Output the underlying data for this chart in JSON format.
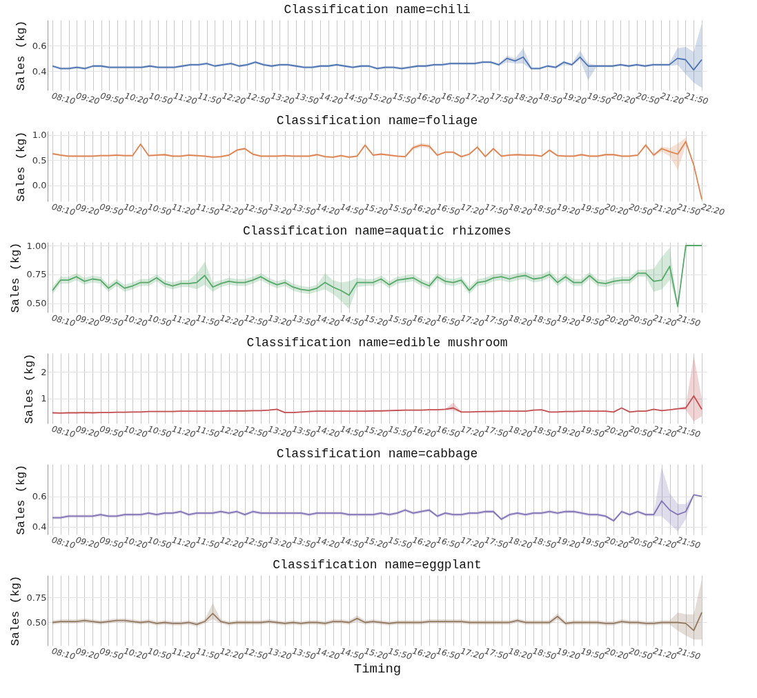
{
  "chart_data": [
    {
      "type": "line",
      "title": "Classification name=chili",
      "ylabel": "Sales (kg)",
      "grid": true,
      "tick_labels": "y",
      "ylim": [
        0.25,
        0.8
      ],
      "yticks": [
        0.4,
        0.6
      ],
      "categories": [
        "08:10",
        null,
        null,
        "09:20",
        null,
        null,
        "09:50",
        null,
        null,
        "10:20",
        null,
        null,
        "10:50",
        null,
        null,
        "11:20",
        null,
        null,
        "11:50",
        null,
        null,
        "12:20",
        null,
        null,
        "12:50",
        null,
        null,
        "13:20",
        null,
        null,
        "13:50",
        null,
        null,
        "14:20",
        null,
        null,
        "14:50",
        null,
        null,
        "15:20",
        null,
        null,
        "15:50",
        null,
        null,
        "16:20",
        null,
        null,
        "16:50",
        null,
        null,
        "17:20",
        null,
        null,
        "17:50",
        null,
        null,
        "18:20",
        null,
        null,
        "18:50",
        null,
        null,
        "19:20",
        null,
        null,
        "19:50",
        null,
        null,
        "20:20",
        null,
        null,
        "20:50",
        null,
        null,
        "21:20",
        null,
        null,
        "21:50",
        null,
        null
      ],
      "series": [
        {
          "color": "#4c72b0",
          "values": [
            0.44,
            0.42,
            0.42,
            0.43,
            0.42,
            0.44,
            0.44,
            0.43,
            0.43,
            0.43,
            0.43,
            0.43,
            0.44,
            0.43,
            0.43,
            0.43,
            0.44,
            0.45,
            0.45,
            0.46,
            0.44,
            0.45,
            0.46,
            0.44,
            0.45,
            0.47,
            0.45,
            0.44,
            0.45,
            0.45,
            0.44,
            0.43,
            0.43,
            0.44,
            0.44,
            0.45,
            0.44,
            0.43,
            0.44,
            0.44,
            0.42,
            0.43,
            0.43,
            0.42,
            0.43,
            0.44,
            0.44,
            0.45,
            0.45,
            0.46,
            0.46,
            0.46,
            0.46,
            0.47,
            0.47,
            0.45,
            0.5,
            0.48,
            0.51,
            0.42,
            0.42,
            0.44,
            0.43,
            0.47,
            0.45,
            0.51,
            0.44,
            0.44,
            0.44,
            0.44,
            0.45,
            0.44,
            0.45,
            0.44,
            0.45,
            0.45,
            0.45,
            0.5,
            0.49,
            0.41,
            0.49
          ],
          "lower": [
            0.43,
            0.41,
            0.41,
            0.42,
            0.41,
            0.43,
            0.43,
            0.42,
            0.42,
            0.42,
            0.42,
            0.42,
            0.43,
            0.42,
            0.42,
            0.42,
            0.43,
            0.44,
            0.44,
            0.45,
            0.43,
            0.44,
            0.45,
            0.43,
            0.44,
            0.46,
            0.44,
            0.43,
            0.44,
            0.44,
            0.43,
            0.42,
            0.42,
            0.43,
            0.43,
            0.44,
            0.43,
            0.42,
            0.43,
            0.43,
            0.41,
            0.42,
            0.42,
            0.41,
            0.42,
            0.43,
            0.43,
            0.44,
            0.44,
            0.45,
            0.45,
            0.45,
            0.45,
            0.46,
            0.46,
            0.44,
            0.47,
            0.46,
            0.46,
            0.41,
            0.41,
            0.43,
            0.42,
            0.45,
            0.44,
            0.49,
            0.33,
            0.43,
            0.43,
            0.43,
            0.44,
            0.43,
            0.44,
            0.43,
            0.44,
            0.44,
            0.44,
            0.45,
            0.38,
            0.31,
            0.27
          ],
          "upper": [
            0.45,
            0.43,
            0.43,
            0.44,
            0.43,
            0.45,
            0.45,
            0.44,
            0.44,
            0.44,
            0.44,
            0.44,
            0.45,
            0.44,
            0.44,
            0.44,
            0.45,
            0.46,
            0.46,
            0.47,
            0.45,
            0.46,
            0.47,
            0.45,
            0.46,
            0.48,
            0.46,
            0.45,
            0.46,
            0.46,
            0.45,
            0.44,
            0.44,
            0.45,
            0.45,
            0.46,
            0.45,
            0.44,
            0.45,
            0.45,
            0.43,
            0.44,
            0.44,
            0.43,
            0.44,
            0.45,
            0.45,
            0.46,
            0.46,
            0.47,
            0.47,
            0.47,
            0.47,
            0.48,
            0.48,
            0.46,
            0.52,
            0.5,
            0.58,
            0.43,
            0.43,
            0.45,
            0.44,
            0.48,
            0.46,
            0.56,
            0.46,
            0.45,
            0.45,
            0.45,
            0.46,
            0.45,
            0.46,
            0.45,
            0.46,
            0.46,
            0.46,
            0.58,
            0.59,
            0.55,
            0.77
          ]
        }
      ]
    },
    {
      "type": "line",
      "title": "Classification name=foliage",
      "ylabel": "Sales (kg)",
      "grid": true,
      "tick_labels": "y",
      "ylim": [
        -0.32,
        1.08
      ],
      "yticks": [
        {
          "value": 0,
          "label": "0.0"
        },
        0.5,
        {
          "value": 1,
          "label": "1.0"
        }
      ],
      "categories": [
        "08:10",
        null,
        null,
        "09:20",
        null,
        null,
        "09:50",
        null,
        null,
        "10:20",
        null,
        null,
        "10:50",
        null,
        null,
        "11:20",
        null,
        null,
        "11:50",
        null,
        null,
        "12:20",
        null,
        null,
        "12:50",
        null,
        null,
        "13:20",
        null,
        null,
        "13:50",
        null,
        null,
        "14:20",
        null,
        null,
        "14:50",
        null,
        null,
        "15:20",
        null,
        null,
        "15:50",
        null,
        null,
        "16:20",
        null,
        null,
        "16:50",
        null,
        null,
        "17:20",
        null,
        null,
        "17:50",
        null,
        null,
        "18:20",
        null,
        null,
        "18:50",
        null,
        null,
        "19:20",
        null,
        null,
        "19:50",
        null,
        null,
        "20:20",
        null,
        null,
        "20:50",
        null,
        null,
        "21:20",
        null,
        null,
        "21:50",
        null,
        null,
        "22:20"
      ],
      "series": [
        {
          "color": "#dd8452",
          "values": [
            0.63,
            0.6,
            0.58,
            0.58,
            0.58,
            0.58,
            0.59,
            0.59,
            0.6,
            0.59,
            0.59,
            0.82,
            0.59,
            0.6,
            0.61,
            0.58,
            0.58,
            0.6,
            0.59,
            0.58,
            0.56,
            0.57,
            0.6,
            0.7,
            0.73,
            0.62,
            0.58,
            0.58,
            0.58,
            0.59,
            0.58,
            0.58,
            0.58,
            0.61,
            0.57,
            0.56,
            0.59,
            0.56,
            0.58,
            0.8,
            0.6,
            0.62,
            0.6,
            0.58,
            0.57,
            0.75,
            0.8,
            0.78,
            0.6,
            0.66,
            0.66,
            0.57,
            0.62,
            0.76,
            0.57,
            0.73,
            0.58,
            0.6,
            0.61,
            0.6,
            0.6,
            0.58,
            0.7,
            0.59,
            0.58,
            0.58,
            0.61,
            0.58,
            0.58,
            0.61,
            0.61,
            0.58,
            0.58,
            0.6,
            0.8,
            0.6,
            0.73,
            0.67,
            0.62,
            0.87,
            0.4,
            -0.28
          ],
          "lower": [
            0.61,
            0.58,
            0.56,
            0.56,
            0.56,
            0.56,
            0.57,
            0.57,
            0.58,
            0.57,
            0.57,
            0.8,
            0.57,
            0.58,
            0.59,
            0.56,
            0.56,
            0.58,
            0.57,
            0.56,
            0.54,
            0.55,
            0.58,
            0.68,
            0.71,
            0.6,
            0.56,
            0.56,
            0.56,
            0.57,
            0.56,
            0.56,
            0.56,
            0.59,
            0.55,
            0.54,
            0.57,
            0.54,
            0.56,
            0.78,
            0.58,
            0.6,
            0.58,
            0.56,
            0.55,
            0.71,
            0.76,
            0.74,
            0.58,
            0.64,
            0.64,
            0.55,
            0.6,
            0.74,
            0.55,
            0.71,
            0.56,
            0.58,
            0.59,
            0.58,
            0.58,
            0.56,
            0.68,
            0.57,
            0.56,
            0.56,
            0.59,
            0.56,
            0.56,
            0.59,
            0.59,
            0.56,
            0.56,
            0.58,
            0.77,
            0.58,
            0.67,
            0.58,
            0.3,
            0.8,
            0.4,
            -0.28
          ],
          "upper": [
            0.65,
            0.62,
            0.6,
            0.6,
            0.6,
            0.6,
            0.61,
            0.61,
            0.62,
            0.61,
            0.61,
            0.84,
            0.61,
            0.62,
            0.63,
            0.6,
            0.6,
            0.62,
            0.61,
            0.6,
            0.58,
            0.59,
            0.62,
            0.72,
            0.75,
            0.64,
            0.6,
            0.6,
            0.6,
            0.61,
            0.6,
            0.6,
            0.6,
            0.63,
            0.59,
            0.58,
            0.61,
            0.58,
            0.6,
            0.82,
            0.62,
            0.64,
            0.62,
            0.6,
            0.59,
            0.79,
            0.84,
            0.82,
            0.62,
            0.68,
            0.68,
            0.59,
            0.64,
            0.78,
            0.59,
            0.75,
            0.6,
            0.62,
            0.63,
            0.62,
            0.62,
            0.6,
            0.72,
            0.61,
            0.6,
            0.6,
            0.63,
            0.6,
            0.6,
            0.63,
            0.63,
            0.6,
            0.6,
            0.62,
            0.83,
            0.62,
            0.77,
            0.74,
            0.83,
            0.95,
            0.4,
            -0.28
          ]
        }
      ]
    },
    {
      "type": "line",
      "title": "Classification name=aquatic rhizomes",
      "ylabel": "Sales (kg)",
      "grid": true,
      "tick_labels": "y",
      "ylim": [
        0.42,
        1.03
      ],
      "yticks": [
        {
          "value": 0.5,
          "label": "0.50"
        },
        0.75,
        {
          "value": 1,
          "label": "1.00"
        }
      ],
      "categories": [
        "08:10",
        null,
        null,
        "09:20",
        null,
        null,
        "09:50",
        null,
        null,
        "10:20",
        null,
        null,
        "10:50",
        null,
        null,
        "11:20",
        null,
        null,
        "11:50",
        null,
        null,
        "12:20",
        null,
        null,
        "12:50",
        null,
        null,
        "13:20",
        null,
        null,
        "13:50",
        null,
        null,
        "14:20",
        null,
        null,
        "14:50",
        null,
        null,
        "15:20",
        null,
        null,
        "15:50",
        null,
        null,
        "16:20",
        null,
        null,
        "16:50",
        null,
        null,
        "17:20",
        null,
        null,
        "17:50",
        null,
        null,
        "18:20",
        null,
        null,
        "18:50",
        null,
        null,
        "19:20",
        null,
        null,
        "19:50",
        null,
        null,
        "20:20",
        null,
        null,
        "20:50",
        null,
        null,
        "21:20",
        null,
        null,
        "21:50",
        null,
        null,
        null
      ],
      "series": [
        {
          "color": "#55a868",
          "values": [
            0.61,
            0.7,
            0.7,
            0.73,
            0.69,
            0.71,
            0.7,
            0.63,
            0.68,
            0.63,
            0.65,
            0.68,
            0.68,
            0.72,
            0.67,
            0.65,
            0.67,
            0.67,
            0.68,
            0.74,
            0.64,
            0.67,
            0.69,
            0.68,
            0.68,
            0.7,
            0.73,
            0.69,
            0.66,
            0.68,
            0.64,
            0.62,
            0.61,
            0.63,
            0.68,
            0.64,
            0.61,
            0.57,
            0.68,
            0.68,
            0.68,
            0.71,
            0.66,
            0.7,
            0.71,
            0.72,
            0.68,
            0.65,
            0.73,
            0.69,
            0.68,
            0.7,
            0.61,
            0.68,
            0.69,
            0.72,
            0.73,
            0.71,
            0.73,
            0.74,
            0.71,
            0.72,
            0.75,
            0.68,
            0.73,
            0.68,
            0.68,
            0.74,
            0.68,
            0.67,
            0.69,
            0.7,
            0.7,
            0.76,
            0.76,
            0.69,
            0.7,
            0.82,
            0.47,
            1.0,
            1.0,
            1.0
          ],
          "lower": [
            0.58,
            0.67,
            0.67,
            0.7,
            0.66,
            0.68,
            0.67,
            0.6,
            0.65,
            0.6,
            0.62,
            0.65,
            0.65,
            0.69,
            0.64,
            0.62,
            0.64,
            0.64,
            0.62,
            0.66,
            0.6,
            0.64,
            0.66,
            0.65,
            0.65,
            0.67,
            0.7,
            0.66,
            0.63,
            0.65,
            0.61,
            0.59,
            0.58,
            0.6,
            0.62,
            0.58,
            0.52,
            0.45,
            0.64,
            0.65,
            0.65,
            0.68,
            0.63,
            0.67,
            0.68,
            0.69,
            0.65,
            0.62,
            0.7,
            0.66,
            0.65,
            0.67,
            0.58,
            0.65,
            0.66,
            0.69,
            0.7,
            0.68,
            0.7,
            0.71,
            0.68,
            0.69,
            0.72,
            0.65,
            0.7,
            0.65,
            0.65,
            0.71,
            0.65,
            0.64,
            0.66,
            0.67,
            0.67,
            0.73,
            0.73,
            0.6,
            0.62,
            0.7,
            0.47,
            1.0,
            1.0,
            1.0
          ],
          "upper": [
            0.64,
            0.73,
            0.73,
            0.76,
            0.72,
            0.74,
            0.73,
            0.66,
            0.71,
            0.66,
            0.68,
            0.71,
            0.71,
            0.75,
            0.7,
            0.68,
            0.7,
            0.7,
            0.76,
            0.86,
            0.68,
            0.7,
            0.72,
            0.71,
            0.71,
            0.73,
            0.76,
            0.72,
            0.69,
            0.71,
            0.67,
            0.65,
            0.64,
            0.66,
            0.76,
            0.7,
            0.68,
            0.69,
            0.72,
            0.71,
            0.71,
            0.74,
            0.69,
            0.73,
            0.74,
            0.75,
            0.71,
            0.68,
            0.76,
            0.72,
            0.71,
            0.73,
            0.64,
            0.71,
            0.72,
            0.75,
            0.76,
            0.74,
            0.76,
            0.77,
            0.74,
            0.75,
            0.78,
            0.71,
            0.76,
            0.71,
            0.71,
            0.77,
            0.71,
            0.7,
            0.72,
            0.73,
            0.73,
            0.79,
            0.79,
            0.8,
            0.9,
            0.98,
            0.47,
            1.0,
            1.0,
            1.0
          ]
        }
      ]
    },
    {
      "type": "line",
      "title": "Classification name=edible mushroom",
      "ylabel": "Sales (kg)",
      "grid": true,
      "tick_labels": "y",
      "ylim": [
        0.07,
        2.7
      ],
      "yticks": [
        1,
        2
      ],
      "categories": [
        "08:10",
        null,
        null,
        "09:20",
        null,
        null,
        "09:50",
        null,
        null,
        "10:20",
        null,
        null,
        "10:50",
        null,
        null,
        "11:20",
        null,
        null,
        "11:50",
        null,
        null,
        "12:20",
        null,
        null,
        "12:50",
        null,
        null,
        "13:20",
        null,
        null,
        "13:50",
        null,
        null,
        "14:20",
        null,
        null,
        "14:50",
        null,
        null,
        "15:20",
        null,
        null,
        "15:50",
        null,
        null,
        "16:20",
        null,
        null,
        "16:50",
        null,
        null,
        "17:20",
        null,
        null,
        "17:50",
        null,
        null,
        "18:20",
        null,
        null,
        "18:50",
        null,
        null,
        "19:20",
        null,
        null,
        "19:50",
        null,
        null,
        "20:20",
        null,
        null,
        "20:50",
        null,
        null,
        "21:20",
        null,
        null,
        "21:50",
        null,
        null,
        null
      ],
      "series": [
        {
          "color": "#c44e52",
          "values": [
            0.47,
            0.46,
            0.47,
            0.47,
            0.48,
            0.47,
            0.48,
            0.48,
            0.49,
            0.49,
            0.5,
            0.5,
            0.52,
            0.52,
            0.52,
            0.52,
            0.53,
            0.53,
            0.53,
            0.53,
            0.53,
            0.53,
            0.54,
            0.54,
            0.54,
            0.55,
            0.55,
            0.57,
            0.6,
            0.48,
            0.48,
            0.5,
            0.52,
            0.53,
            0.53,
            0.53,
            0.53,
            0.53,
            0.53,
            0.53,
            0.54,
            0.54,
            0.55,
            0.56,
            0.57,
            0.57,
            0.57,
            0.58,
            0.58,
            0.6,
            0.65,
            0.5,
            0.5,
            0.51,
            0.52,
            0.52,
            0.53,
            0.53,
            0.53,
            0.53,
            0.57,
            0.58,
            0.5,
            0.5,
            0.52,
            0.52,
            0.53,
            0.53,
            0.53,
            0.53,
            0.5,
            0.65,
            0.5,
            0.53,
            0.53,
            0.6,
            0.55,
            0.58,
            0.62,
            0.65,
            1.1,
            0.6
          ],
          "lower": [
            0.45,
            0.44,
            0.45,
            0.45,
            0.46,
            0.45,
            0.46,
            0.46,
            0.47,
            0.47,
            0.48,
            0.48,
            0.5,
            0.5,
            0.5,
            0.5,
            0.51,
            0.51,
            0.51,
            0.51,
            0.51,
            0.51,
            0.52,
            0.52,
            0.52,
            0.53,
            0.53,
            0.55,
            0.58,
            0.46,
            0.46,
            0.48,
            0.5,
            0.51,
            0.51,
            0.51,
            0.51,
            0.51,
            0.51,
            0.51,
            0.52,
            0.52,
            0.53,
            0.54,
            0.55,
            0.55,
            0.55,
            0.56,
            0.56,
            0.58,
            0.55,
            0.48,
            0.48,
            0.49,
            0.5,
            0.5,
            0.51,
            0.51,
            0.51,
            0.51,
            0.55,
            0.56,
            0.48,
            0.48,
            0.5,
            0.5,
            0.51,
            0.51,
            0.51,
            0.51,
            0.48,
            0.63,
            0.48,
            0.51,
            0.51,
            0.58,
            0.53,
            0.56,
            0.6,
            0.58,
            0.15,
            0.35
          ],
          "upper": [
            0.49,
            0.48,
            0.49,
            0.49,
            0.5,
            0.49,
            0.5,
            0.5,
            0.51,
            0.51,
            0.52,
            0.52,
            0.54,
            0.54,
            0.54,
            0.54,
            0.55,
            0.55,
            0.55,
            0.55,
            0.55,
            0.55,
            0.56,
            0.56,
            0.56,
            0.57,
            0.57,
            0.59,
            0.62,
            0.5,
            0.5,
            0.52,
            0.54,
            0.55,
            0.55,
            0.55,
            0.55,
            0.55,
            0.55,
            0.55,
            0.56,
            0.56,
            0.57,
            0.58,
            0.59,
            0.59,
            0.59,
            0.6,
            0.6,
            0.62,
            0.85,
            0.52,
            0.52,
            0.53,
            0.54,
            0.54,
            0.55,
            0.55,
            0.55,
            0.55,
            0.59,
            0.6,
            0.52,
            0.52,
            0.54,
            0.54,
            0.55,
            0.55,
            0.55,
            0.55,
            0.52,
            0.67,
            0.52,
            0.55,
            0.55,
            0.62,
            0.57,
            0.6,
            0.64,
            0.72,
            2.6,
            1.0
          ]
        }
      ]
    },
    {
      "type": "line",
      "title": "Classification name=cabbage",
      "ylabel": "Sales (kg)",
      "grid": true,
      "tick_labels": "y",
      "ylim": [
        0.35,
        0.81
      ],
      "yticks": [
        0.4,
        0.6
      ],
      "categories": [
        "08:10",
        null,
        null,
        "09:20",
        null,
        null,
        "09:50",
        null,
        null,
        "10:20",
        null,
        null,
        "10:50",
        null,
        null,
        "11:20",
        null,
        null,
        "11:50",
        null,
        null,
        "12:20",
        null,
        null,
        "12:50",
        null,
        null,
        "13:20",
        null,
        null,
        "13:50",
        null,
        null,
        "14:20",
        null,
        null,
        "14:50",
        null,
        null,
        "15:20",
        null,
        null,
        "15:50",
        null,
        null,
        "16:20",
        null,
        null,
        "16:50",
        null,
        null,
        "17:20",
        null,
        null,
        "17:50",
        null,
        null,
        "18:20",
        null,
        null,
        "18:50",
        null,
        null,
        "19:20",
        null,
        null,
        "19:50",
        null,
        null,
        "20:20",
        null,
        null,
        "20:50",
        null,
        null,
        "21:20",
        null,
        null,
        "21:50",
        null,
        null,
        null
      ],
      "series": [
        {
          "color": "#8172b3",
          "values": [
            0.46,
            0.46,
            0.47,
            0.47,
            0.47,
            0.47,
            0.48,
            0.47,
            0.47,
            0.48,
            0.48,
            0.48,
            0.49,
            0.48,
            0.49,
            0.49,
            0.5,
            0.48,
            0.49,
            0.49,
            0.49,
            0.5,
            0.49,
            0.5,
            0.48,
            0.5,
            0.49,
            0.49,
            0.49,
            0.49,
            0.49,
            0.49,
            0.48,
            0.49,
            0.49,
            0.49,
            0.49,
            0.48,
            0.48,
            0.48,
            0.48,
            0.49,
            0.48,
            0.49,
            0.51,
            0.49,
            0.5,
            0.51,
            0.47,
            0.49,
            0.48,
            0.48,
            0.49,
            0.49,
            0.5,
            0.5,
            0.45,
            0.48,
            0.49,
            0.48,
            0.49,
            0.49,
            0.5,
            0.49,
            0.5,
            0.5,
            0.49,
            0.48,
            0.48,
            0.47,
            0.44,
            0.5,
            0.48,
            0.5,
            0.48,
            0.48,
            0.57,
            0.51,
            0.48,
            0.5,
            0.61,
            0.6
          ],
          "lower": [
            0.45,
            0.45,
            0.46,
            0.46,
            0.46,
            0.46,
            0.47,
            0.46,
            0.46,
            0.47,
            0.47,
            0.47,
            0.48,
            0.47,
            0.48,
            0.48,
            0.49,
            0.47,
            0.48,
            0.48,
            0.48,
            0.49,
            0.48,
            0.49,
            0.47,
            0.49,
            0.48,
            0.48,
            0.48,
            0.48,
            0.48,
            0.48,
            0.47,
            0.48,
            0.48,
            0.48,
            0.48,
            0.47,
            0.47,
            0.47,
            0.47,
            0.48,
            0.47,
            0.48,
            0.5,
            0.48,
            0.49,
            0.5,
            0.46,
            0.48,
            0.47,
            0.47,
            0.48,
            0.48,
            0.49,
            0.49,
            0.44,
            0.47,
            0.48,
            0.47,
            0.48,
            0.48,
            0.49,
            0.48,
            0.49,
            0.49,
            0.48,
            0.47,
            0.47,
            0.46,
            0.43,
            0.49,
            0.47,
            0.49,
            0.47,
            0.47,
            0.47,
            0.42,
            0.37,
            0.45,
            0.61,
            0.6
          ],
          "upper": [
            0.47,
            0.47,
            0.48,
            0.48,
            0.48,
            0.48,
            0.49,
            0.48,
            0.48,
            0.49,
            0.49,
            0.49,
            0.5,
            0.49,
            0.5,
            0.5,
            0.51,
            0.49,
            0.5,
            0.5,
            0.5,
            0.51,
            0.5,
            0.51,
            0.49,
            0.51,
            0.5,
            0.5,
            0.5,
            0.5,
            0.5,
            0.5,
            0.49,
            0.5,
            0.5,
            0.5,
            0.5,
            0.49,
            0.49,
            0.49,
            0.49,
            0.5,
            0.49,
            0.5,
            0.52,
            0.5,
            0.51,
            0.52,
            0.48,
            0.5,
            0.49,
            0.49,
            0.5,
            0.5,
            0.51,
            0.51,
            0.46,
            0.49,
            0.5,
            0.49,
            0.5,
            0.5,
            0.51,
            0.5,
            0.51,
            0.51,
            0.5,
            0.49,
            0.49,
            0.48,
            0.45,
            0.51,
            0.49,
            0.51,
            0.49,
            0.49,
            0.79,
            0.62,
            0.55,
            0.55,
            0.61,
            0.6
          ]
        }
      ]
    },
    {
      "type": "line",
      "title": "Classification name=eggplant",
      "xlabel": "Timing",
      "ylabel": "Sales (kg)",
      "grid": true,
      "ylim": [
        0.27,
        0.97
      ],
      "yticks": [
        {
          "value": 0.5,
          "label": "0.50"
        },
        0.75
      ],
      "categories": [
        "08:10",
        null,
        null,
        "09:20",
        null,
        null,
        "09:50",
        null,
        null,
        "10:20",
        null,
        null,
        "10:50",
        null,
        null,
        "11:20",
        null,
        null,
        "11:50",
        null,
        null,
        "12:20",
        null,
        null,
        "12:50",
        null,
        null,
        "13:20",
        null,
        null,
        "13:50",
        null,
        null,
        "14:20",
        null,
        null,
        "14:50",
        null,
        null,
        "15:20",
        null,
        null,
        "15:50",
        null,
        null,
        "16:20",
        null,
        null,
        "16:50",
        null,
        null,
        "17:20",
        null,
        null,
        "17:50",
        null,
        null,
        "18:20",
        null,
        null,
        "18:50",
        null,
        null,
        "19:20",
        null,
        null,
        "19:50",
        null,
        null,
        "20:20",
        null,
        null,
        "20:50",
        null,
        null,
        "21:20",
        null,
        null,
        "21:50",
        null,
        null,
        null
      ],
      "series": [
        {
          "color": "#937860",
          "values": [
            0.5,
            0.51,
            0.51,
            0.51,
            0.52,
            0.51,
            0.5,
            0.51,
            0.52,
            0.52,
            0.51,
            0.5,
            0.51,
            0.49,
            0.5,
            0.49,
            0.49,
            0.5,
            0.48,
            0.51,
            0.59,
            0.51,
            0.49,
            0.5,
            0.5,
            0.5,
            0.5,
            0.51,
            0.5,
            0.49,
            0.5,
            0.49,
            0.5,
            0.5,
            0.49,
            0.51,
            0.51,
            0.5,
            0.54,
            0.5,
            0.51,
            0.5,
            0.49,
            0.5,
            0.5,
            0.5,
            0.5,
            0.51,
            0.51,
            0.51,
            0.51,
            0.51,
            0.5,
            0.5,
            0.5,
            0.5,
            0.5,
            0.5,
            0.52,
            0.5,
            0.5,
            0.5,
            0.5,
            0.56,
            0.49,
            0.5,
            0.5,
            0.5,
            0.5,
            0.49,
            0.49,
            0.51,
            0.5,
            0.5,
            0.49,
            0.49,
            0.5,
            0.5,
            0.5,
            0.49,
            0.42,
            0.6
          ],
          "lower": [
            0.48,
            0.49,
            0.49,
            0.49,
            0.5,
            0.49,
            0.48,
            0.49,
            0.5,
            0.5,
            0.49,
            0.48,
            0.49,
            0.47,
            0.48,
            0.47,
            0.47,
            0.48,
            0.46,
            0.49,
            0.53,
            0.49,
            0.47,
            0.48,
            0.48,
            0.48,
            0.48,
            0.49,
            0.48,
            0.47,
            0.48,
            0.47,
            0.48,
            0.48,
            0.47,
            0.49,
            0.49,
            0.48,
            0.51,
            0.48,
            0.49,
            0.48,
            0.47,
            0.48,
            0.48,
            0.48,
            0.48,
            0.49,
            0.49,
            0.49,
            0.49,
            0.49,
            0.48,
            0.48,
            0.48,
            0.48,
            0.48,
            0.48,
            0.5,
            0.48,
            0.48,
            0.48,
            0.48,
            0.53,
            0.47,
            0.48,
            0.48,
            0.48,
            0.48,
            0.47,
            0.47,
            0.49,
            0.48,
            0.48,
            0.47,
            0.47,
            0.48,
            0.48,
            0.42,
            0.37,
            0.33,
            0.33
          ],
          "upper": [
            0.52,
            0.53,
            0.53,
            0.53,
            0.54,
            0.53,
            0.52,
            0.53,
            0.54,
            0.54,
            0.53,
            0.52,
            0.53,
            0.51,
            0.52,
            0.51,
            0.51,
            0.52,
            0.5,
            0.53,
            0.69,
            0.53,
            0.51,
            0.52,
            0.52,
            0.52,
            0.52,
            0.53,
            0.52,
            0.51,
            0.52,
            0.51,
            0.52,
            0.52,
            0.51,
            0.53,
            0.53,
            0.52,
            0.57,
            0.52,
            0.53,
            0.52,
            0.51,
            0.52,
            0.52,
            0.52,
            0.52,
            0.53,
            0.53,
            0.53,
            0.53,
            0.53,
            0.52,
            0.52,
            0.52,
            0.52,
            0.52,
            0.52,
            0.54,
            0.52,
            0.52,
            0.52,
            0.52,
            0.59,
            0.51,
            0.52,
            0.52,
            0.52,
            0.52,
            0.51,
            0.51,
            0.53,
            0.52,
            0.52,
            0.51,
            0.51,
            0.52,
            0.52,
            0.6,
            0.58,
            0.58,
            0.93
          ]
        }
      ]
    }
  ]
}
